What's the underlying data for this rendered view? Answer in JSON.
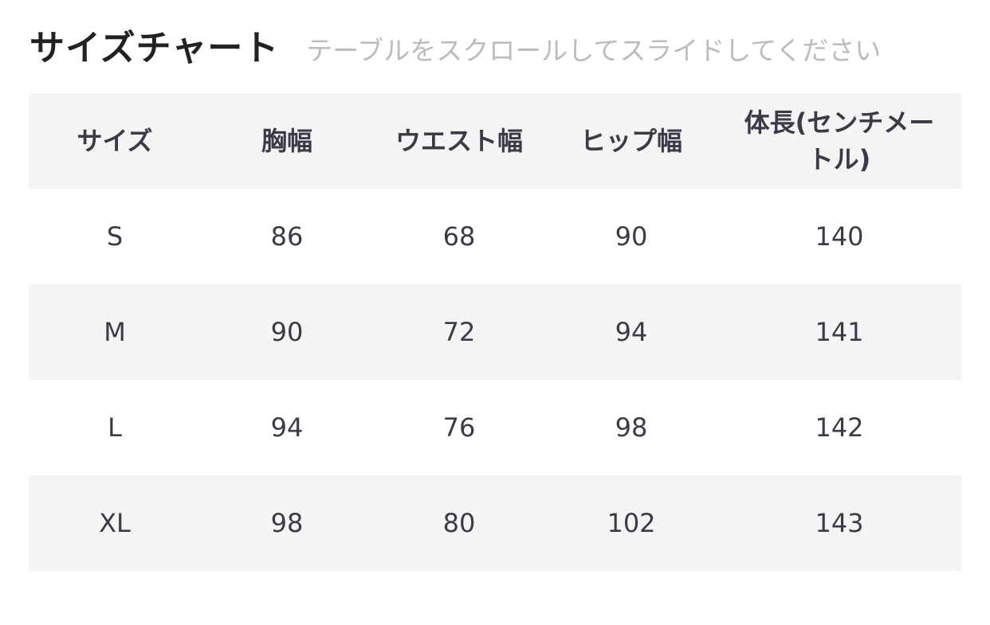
{
  "title": "サイズチャート",
  "subtitle": "テーブルをスクロールしてスライドしてください",
  "table": {
    "headers": [
      "サイズ",
      "胸幅",
      "ウエスト幅",
      "ヒップ幅",
      "体長(センチメートル)"
    ],
    "rows": [
      [
        "S",
        "86",
        "68",
        "90",
        "140"
      ],
      [
        "M",
        "90",
        "72",
        "94",
        "141"
      ],
      [
        "L",
        "94",
        "76",
        "98",
        "142"
      ],
      [
        "XL",
        "98",
        "80",
        "102",
        "143"
      ]
    ]
  }
}
